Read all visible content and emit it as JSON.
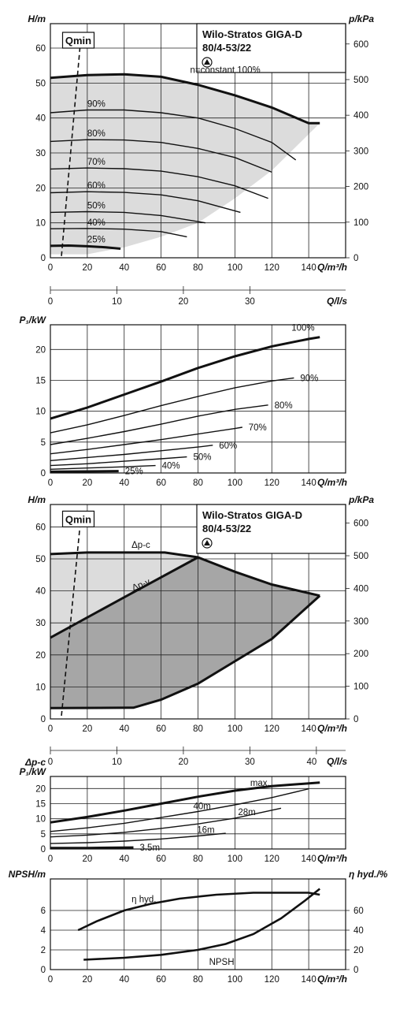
{
  "colors": {
    "line": "#111111",
    "region_light": "#dcdcdc",
    "region_dark": "#a6a6a6",
    "region_mid": "#c8c8c8"
  },
  "chart_data": [
    {
      "id": "head_speed",
      "type": "line",
      "title": "Wilo-Stratos GIGA-D",
      "subtitle": "80/4-53/22",
      "xlabel": "Q/m³/h",
      "ylabel": "H/m",
      "y2label": "p/kPa",
      "xlim": [
        0,
        160
      ],
      "ylim": [
        0,
        67
      ],
      "y2lim": [
        0,
        657
      ],
      "xticks": [
        "0",
        "20",
        "40",
        "60",
        "80",
        "100",
        "120",
        "140"
      ],
      "yticks": [
        "0",
        "10",
        "20",
        "30",
        "40",
        "50",
        "60"
      ],
      "y2ticks": [
        "0",
        "100",
        "200",
        "300",
        "400",
        "500",
        "600"
      ],
      "qmin_label": "Qmin",
      "qmin_line": [
        [
          6,
          0.5
        ],
        [
          16,
          60
        ]
      ],
      "series": [
        {
          "name": "n=constant 100%",
          "bold": true,
          "x": [
            0,
            20,
            40,
            60,
            80,
            100,
            120,
            140,
            146
          ],
          "y": [
            51.5,
            52.3,
            52.5,
            51.8,
            49.5,
            46.5,
            43,
            38.5,
            38.5
          ]
        },
        {
          "name": "90%",
          "x": [
            0,
            20,
            40,
            60,
            80,
            100,
            120,
            133
          ],
          "y": [
            41.5,
            42.3,
            42.3,
            41.5,
            40,
            37,
            33,
            28
          ]
        },
        {
          "name": "80%",
          "x": [
            0,
            20,
            40,
            60,
            80,
            100,
            120
          ],
          "y": [
            33.3,
            33.8,
            33.7,
            33,
            31.3,
            28.7,
            24.5
          ]
        },
        {
          "name": "70%",
          "x": [
            0,
            20,
            40,
            60,
            80,
            100,
            118
          ],
          "y": [
            25.4,
            25.7,
            25.5,
            24.8,
            23.2,
            20.6,
            17
          ]
        },
        {
          "name": "60%",
          "x": [
            0,
            20,
            40,
            60,
            80,
            103
          ],
          "y": [
            18.6,
            18.9,
            18.7,
            18,
            16.3,
            13
          ]
        },
        {
          "name": "50%",
          "x": [
            0,
            20,
            40,
            60,
            84
          ],
          "y": [
            13,
            13.2,
            13,
            12.1,
            10
          ]
        },
        {
          "name": "40%",
          "x": [
            0,
            20,
            40,
            60,
            74
          ],
          "y": [
            8.3,
            8.4,
            8.2,
            7.5,
            6
          ]
        },
        {
          "name": "25%",
          "bold": true,
          "x": [
            0,
            10,
            20,
            30,
            38
          ],
          "y": [
            3.4,
            3.5,
            3.3,
            3,
            2.6
          ]
        }
      ],
      "region": {
        "x": [
          0,
          20,
          40,
          60,
          80,
          100,
          120,
          140,
          146,
          120,
          100,
          80,
          60,
          40,
          30,
          20,
          0
        ],
        "y": [
          51.5,
          52.3,
          52.5,
          51.8,
          49.5,
          46.5,
          43,
          38.5,
          38.5,
          25,
          17,
          10,
          6,
          3,
          2,
          1,
          1
        ]
      }
    },
    {
      "id": "flow_axis_1",
      "type": "table",
      "xlabel": "Q/l/s",
      "xticks": [
        "0",
        "10",
        "20",
        "30"
      ],
      "xvals": [
        0,
        10,
        20,
        30
      ],
      "xlim": [
        0,
        44.4
      ]
    },
    {
      "id": "power_speed",
      "type": "line",
      "xlabel": "Q/m³/h",
      "ylabel": "P₁/kW",
      "xlim": [
        0,
        160
      ],
      "ylim": [
        0,
        24
      ],
      "xticks": [
        "0",
        "20",
        "40",
        "60",
        "80",
        "100",
        "120",
        "140"
      ],
      "yticks": [
        "0",
        "5",
        "10",
        "15",
        "20"
      ],
      "series": [
        {
          "name": "100%",
          "bold": true,
          "x": [
            0,
            20,
            40,
            60,
            80,
            100,
            120,
            140,
            146
          ],
          "y": [
            8.8,
            10.6,
            12.7,
            14.8,
            17,
            18.9,
            20.5,
            21.7,
            22
          ]
        },
        {
          "name": "90%",
          "x": [
            0,
            20,
            40,
            60,
            80,
            100,
            120,
            132
          ],
          "y": [
            6.5,
            7.8,
            9.3,
            10.9,
            12.4,
            13.8,
            14.9,
            15.4
          ]
        },
        {
          "name": "80%",
          "x": [
            0,
            20,
            40,
            60,
            80,
            100,
            118
          ],
          "y": [
            4.6,
            5.6,
            6.7,
            7.9,
            9.2,
            10.3,
            11
          ]
        },
        {
          "name": "70%",
          "x": [
            0,
            20,
            40,
            60,
            80,
            100,
            104
          ],
          "y": [
            3.1,
            3.8,
            4.6,
            5.4,
            6.3,
            7.2,
            7.4
          ]
        },
        {
          "name": "60%",
          "x": [
            0,
            20,
            40,
            60,
            80,
            88
          ],
          "y": [
            2,
            2.5,
            3,
            3.6,
            4.2,
            4.5
          ]
        },
        {
          "name": "50%",
          "x": [
            0,
            20,
            40,
            60,
            74
          ],
          "y": [
            1.2,
            1.5,
            1.9,
            2.3,
            2.6
          ]
        },
        {
          "name": "40%",
          "x": [
            0,
            20,
            40,
            57
          ],
          "y": [
            0.6,
            0.8,
            1,
            1.2
          ]
        },
        {
          "name": "25%",
          "bold": true,
          "x": [
            0,
            20,
            37
          ],
          "y": [
            0.2,
            0.25,
            0.3
          ]
        }
      ]
    },
    {
      "id": "head_control",
      "type": "area",
      "title": "Wilo-Stratos GIGA-D",
      "subtitle": "80/4-53/22",
      "xlabel": "Q/m³/h",
      "ylabel": "H/m",
      "y2label": "p/kPa",
      "xlim": [
        0,
        160
      ],
      "ylim": [
        0,
        67
      ],
      "y2lim": [
        0,
        657
      ],
      "xticks": [
        "0",
        "20",
        "40",
        "60",
        "80",
        "100",
        "120",
        "140"
      ],
      "yticks": [
        "0",
        "10",
        "20",
        "30",
        "40",
        "50",
        "60"
      ],
      "y2ticks": [
        "0",
        "100",
        "200",
        "300",
        "400",
        "500",
        "600"
      ],
      "qmin_label": "Qmin",
      "qmin_line": [
        [
          6,
          1
        ],
        [
          16,
          60
        ]
      ],
      "labels": {
        "dpc": "Δp-c",
        "dpv": "Δp-v"
      },
      "dpc": {
        "x": [
          0,
          20,
          40,
          62,
          80,
          100,
          120,
          146
        ],
        "y": [
          51.5,
          52,
          52,
          52,
          50.5,
          46,
          42,
          38.5
        ]
      },
      "dpv": {
        "x": [
          0,
          40,
          80,
          110,
          146
        ],
        "y": [
          25.4,
          38,
          50.5,
          45,
          38.5
        ]
      },
      "floor": {
        "x": [
          0,
          45,
          60,
          80,
          100,
          120,
          146
        ],
        "y": [
          3.4,
          3.5,
          6,
          11,
          18,
          25,
          38.5
        ]
      }
    },
    {
      "id": "flow_axis_2",
      "type": "table",
      "xlabel": "Q/l/s",
      "xticks": [
        "0",
        "10",
        "20",
        "30",
        "40"
      ],
      "xvals": [
        0,
        10,
        20,
        30,
        40
      ],
      "xlim": [
        0,
        44.4
      ]
    },
    {
      "id": "power_control",
      "type": "line",
      "xlabel": "Q/m³/h",
      "ylabel": "P₁/kW",
      "ylabel2": "Δp-c",
      "xlim": [
        0,
        160
      ],
      "ylim": [
        0,
        24
      ],
      "xticks": [
        "0",
        "20",
        "40",
        "60",
        "80",
        "100",
        "120",
        "140"
      ],
      "yticks": [
        "0",
        "5",
        "10",
        "15",
        "20"
      ],
      "series": [
        {
          "name": "max.",
          "bold": true,
          "x": [
            0,
            20,
            40,
            60,
            80,
            100,
            120,
            146
          ],
          "y": [
            8.8,
            10.6,
            12.7,
            15,
            17.3,
            19.3,
            20.8,
            22
          ]
        },
        {
          "name": "40m",
          "x": [
            0,
            20,
            40,
            60,
            80,
            100,
            120,
            140
          ],
          "y": [
            5.8,
            7,
            8.5,
            10.4,
            12.4,
            14.6,
            17,
            19.9
          ]
        },
        {
          "name": "28m",
          "x": [
            0,
            20,
            40,
            60,
            80,
            100,
            125
          ],
          "y": [
            4,
            4.6,
            5.5,
            6.8,
            8.3,
            10.2,
            13.5
          ]
        },
        {
          "name": "16m",
          "x": [
            0,
            20,
            40,
            60,
            80,
            95
          ],
          "y": [
            1.8,
            2.1,
            2.6,
            3.3,
            4.3,
            5.2
          ]
        },
        {
          "name": "3.5m",
          "bold": true,
          "x": [
            0,
            20,
            45
          ],
          "y": [
            0.3,
            0.35,
            0.5
          ]
        }
      ]
    },
    {
      "id": "npsh_eta",
      "type": "line",
      "xlabel": "Q/m³/h",
      "ylabel": "NPSH/m",
      "y2label": "η hyd./%",
      "xlim": [
        0,
        160
      ],
      "ylim": [
        0,
        9.2
      ],
      "y2lim": [
        0,
        92
      ],
      "xticks": [
        "0",
        "20",
        "40",
        "60",
        "80",
        "100",
        "120",
        "140"
      ],
      "yticks": [
        "0",
        "2",
        "4",
        "6"
      ],
      "y2ticks": [
        "0",
        "20",
        "40",
        "60"
      ],
      "series": [
        {
          "name": "η hyd.",
          "axis": "right",
          "x": [
            15,
            25,
            40,
            55,
            70,
            90,
            110,
            125,
            140,
            146
          ],
          "y": [
            40,
            49,
            60,
            67,
            72,
            76,
            78,
            78,
            78,
            76
          ]
        },
        {
          "name": "NPSH",
          "axis": "left",
          "x": [
            18,
            40,
            60,
            80,
            95,
            110,
            125,
            138,
            146
          ],
          "y": [
            1,
            1.2,
            1.5,
            2,
            2.6,
            3.6,
            5.2,
            7,
            8.2
          ]
        }
      ]
    }
  ]
}
